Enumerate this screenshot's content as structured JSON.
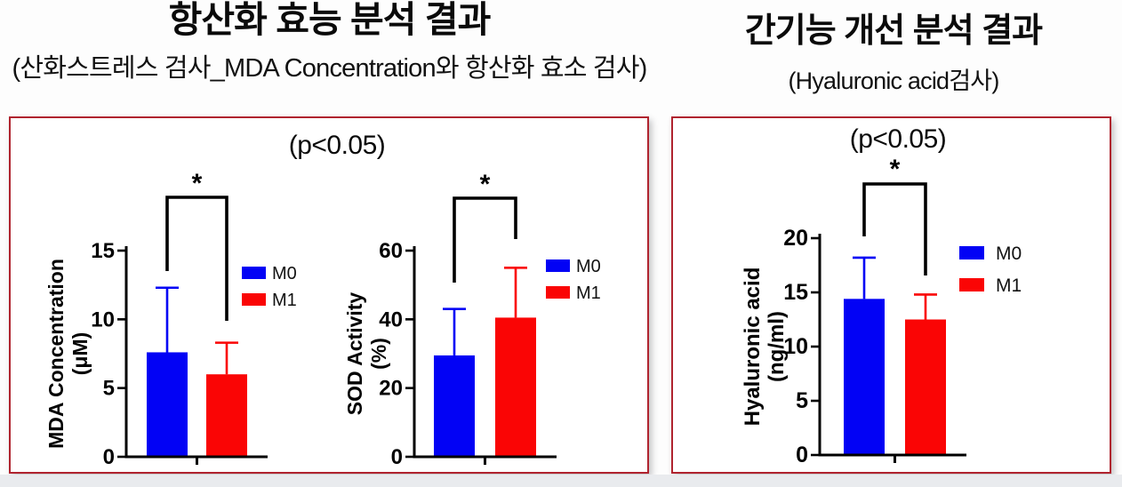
{
  "header_left": {
    "title": "항산화 효능 분석 결과",
    "subtitle": "(산화스트레스 검사_MDA Concentration와 항산화 효소 검사)"
  },
  "header_right": {
    "title": "간기능 개선 분석 결과",
    "subtitle": "(Hyaluronic acid검사)"
  },
  "panel_left": {
    "p_label": "(p<0.05)"
  },
  "panel_right": {
    "p_label": "(p<0.05)"
  },
  "legend": {
    "position": "right",
    "items": [
      {
        "label": "M0",
        "color": "#0202f5"
      },
      {
        "label": "M1",
        "color": "#fa0505"
      }
    ]
  },
  "colors": {
    "bar_m0": "#0202f5",
    "bar_m1": "#fa0505",
    "axis": "#000000",
    "panel_border": "#b0242f",
    "page_strip": "#e9ebee"
  },
  "chart_data": [
    {
      "id": "chart-mda",
      "type": "bar",
      "title": "",
      "ylabel": [
        "MDA Concentration",
        "(μM)"
      ],
      "xlabel": "",
      "ylim": [
        0,
        15
      ],
      "yticks": [
        0,
        5,
        10,
        15
      ],
      "categories": [
        "M0",
        "M1"
      ],
      "series": [
        {
          "name": "M0",
          "value": 7.6,
          "error_high": 12.3,
          "color": "#0202f5"
        },
        {
          "name": "M1",
          "value": 6.0,
          "error_high": 8.3,
          "color": "#fa0505"
        }
      ],
      "significance": "*",
      "grid": false
    },
    {
      "id": "chart-sod",
      "type": "bar",
      "title": "",
      "ylabel": [
        "SOD Activity",
        "(%)"
      ],
      "xlabel": "",
      "ylim": [
        0,
        60
      ],
      "yticks": [
        0,
        20,
        40,
        60
      ],
      "categories": [
        "M0",
        "M1"
      ],
      "series": [
        {
          "name": "M0",
          "value": 29.5,
          "error_high": 43.0,
          "color": "#0202f5"
        },
        {
          "name": "M1",
          "value": 40.5,
          "error_high": 55.0,
          "color": "#fa0505"
        }
      ],
      "significance": "*",
      "grid": false
    },
    {
      "id": "chart-ha",
      "type": "bar",
      "title": "",
      "ylabel": [
        "Hyaluronic acid",
        "(ng/ml)"
      ],
      "xlabel": "",
      "ylim": [
        0,
        20
      ],
      "yticks": [
        0,
        5,
        10,
        15,
        20
      ],
      "categories": [
        "M0",
        "M1"
      ],
      "series": [
        {
          "name": "M0",
          "value": 14.4,
          "error_high": 18.2,
          "color": "#0202f5"
        },
        {
          "name": "M1",
          "value": 12.5,
          "error_high": 14.8,
          "color": "#fa0505"
        }
      ],
      "significance": "*",
      "grid": false
    }
  ]
}
